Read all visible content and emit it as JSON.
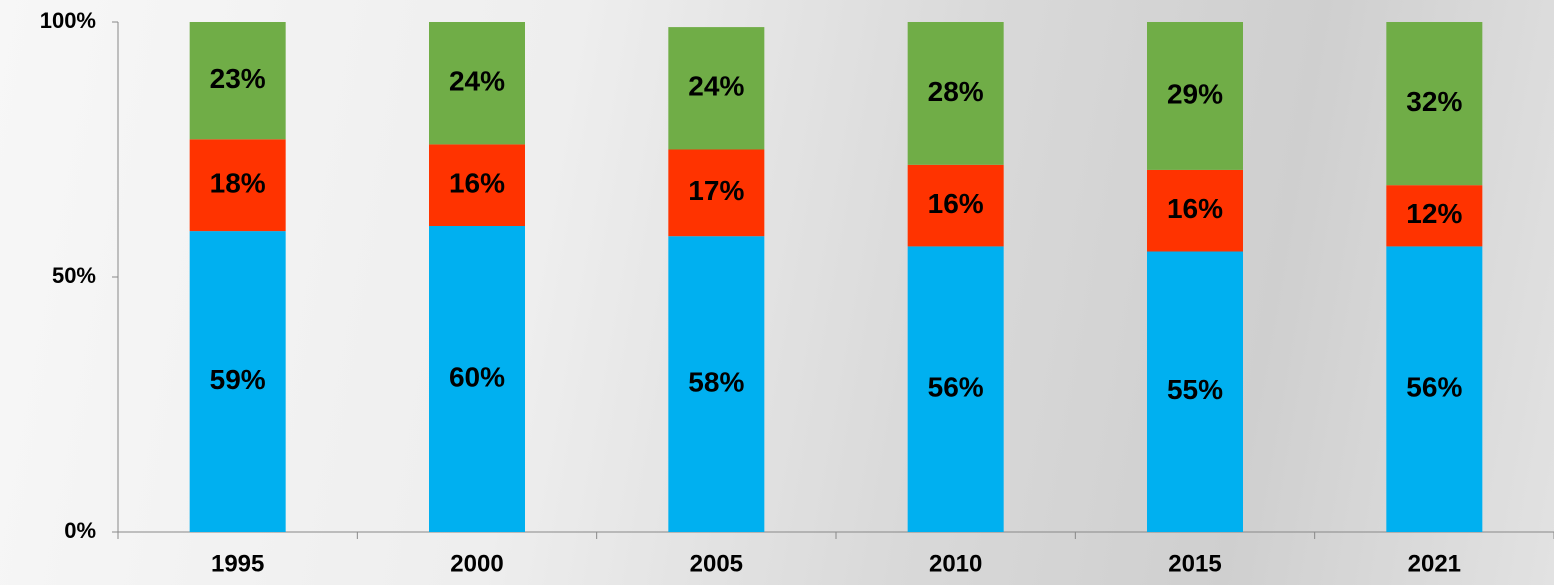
{
  "chart_data": {
    "type": "stacked-bar",
    "categories": [
      "1995",
      "2000",
      "2005",
      "2010",
      "2015",
      "2021"
    ],
    "series": [
      {
        "color": "#00b0f0",
        "values": [
          59,
          60,
          58,
          56,
          55,
          56
        ],
        "value_labels": [
          "59%",
          "60%",
          "58%",
          "56%",
          "55%",
          "56%"
        ]
      },
      {
        "color": "#ff3300",
        "values": [
          18,
          16,
          17,
          16,
          16,
          12
        ],
        "value_labels": [
          "18%",
          "16%",
          "17%",
          "16%",
          "16%",
          "12%"
        ]
      },
      {
        "color": "#70ad47",
        "values": [
          23,
          24,
          24,
          28,
          29,
          32
        ],
        "value_labels": [
          "23%",
          "24%",
          "24%",
          "28%",
          "29%",
          "32%"
        ]
      }
    ],
    "ylim": [
      0,
      100
    ],
    "yticks": [
      {
        "value": 0,
        "label": "0%"
      },
      {
        "value": 50,
        "label": "50%"
      },
      {
        "value": 100,
        "label": "100%"
      }
    ]
  }
}
